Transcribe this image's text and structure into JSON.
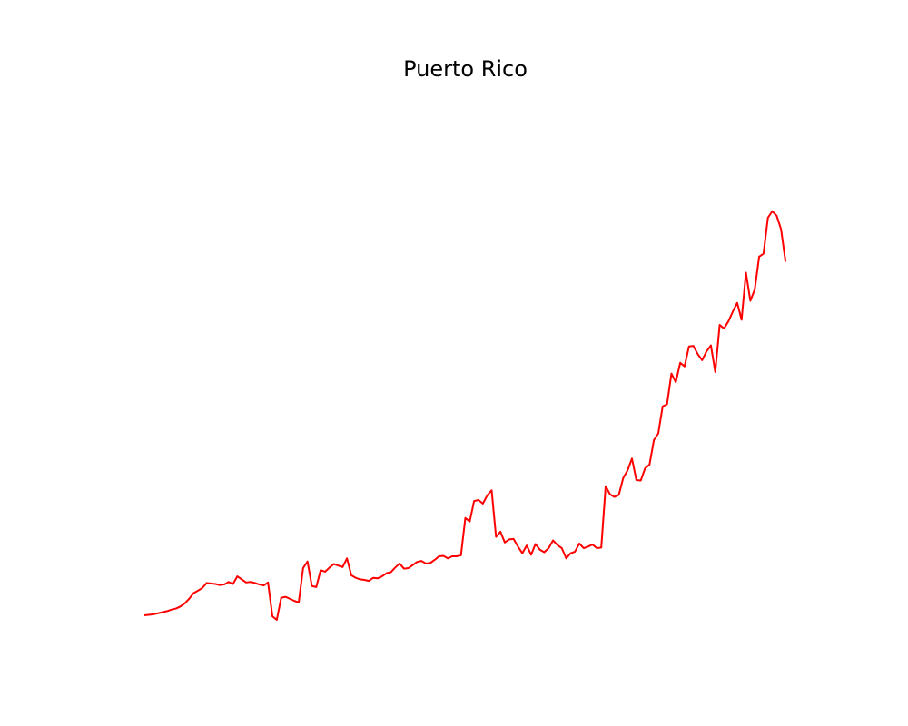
{
  "chart_data": {
    "type": "line",
    "title": "Puerto Rico",
    "xlabel": "",
    "ylabel": "",
    "axes_visible": false,
    "grid": false,
    "ylim": [
      0,
      100
    ],
    "series": [
      {
        "color": "#ff0000",
        "values": [
          2.0,
          2.1,
          2.2,
          2.4,
          2.6,
          2.8,
          3.1,
          3.3,
          3.7,
          4.3,
          5.2,
          6.3,
          6.8,
          7.3,
          8.3,
          8.2,
          8.1,
          7.9,
          8.0,
          8.5,
          8.1,
          9.6,
          9.0,
          8.4,
          8.5,
          8.3,
          8.0,
          7.8,
          8.4,
          1.8,
          1.1,
          5.4,
          5.6,
          5.2,
          4.8,
          4.5,
          11.2,
          12.5,
          7.7,
          7.5,
          10.8,
          10.5,
          11.3,
          12.0,
          11.7,
          11.4,
          13.1,
          9.8,
          9.3,
          9.0,
          8.9,
          8.7,
          9.3,
          9.2,
          9.6,
          10.2,
          10.4,
          11.3,
          12.1,
          11.1,
          11.2,
          11.8,
          12.4,
          12.6,
          12.1,
          12.2,
          12.8,
          13.5,
          13.6,
          13.1,
          13.5,
          13.5,
          13.7,
          21.0,
          20.3,
          24.3,
          24.5,
          23.8,
          25.4,
          26.4,
          17.3,
          18.3,
          16.2,
          16.8,
          16.9,
          15.4,
          14.1,
          15.6,
          13.8,
          15.9,
          14.8,
          14.3,
          15.1,
          16.6,
          15.7,
          15.1,
          13.1,
          14.1,
          14.4,
          16.0,
          15.1,
          15.4,
          15.8,
          15.1,
          15.2,
          27.2,
          25.6,
          25.1,
          25.5,
          28.8,
          30.3,
          32.6,
          28.4,
          28.3,
          30.7,
          31.4,
          36.2,
          37.5,
          42.8,
          43.2,
          49.2,
          47.5,
          51.3,
          50.6,
          54.5,
          54.6,
          53.0,
          51.8,
          53.5,
          54.7,
          49.5,
          58.7,
          58.0,
          59.4,
          61.3,
          63.0,
          59.7,
          68.9,
          63.4,
          65.6,
          72.0,
          72.6,
          79.6,
          80.9,
          80.0,
          77.4,
          71.2
        ]
      }
    ]
  }
}
